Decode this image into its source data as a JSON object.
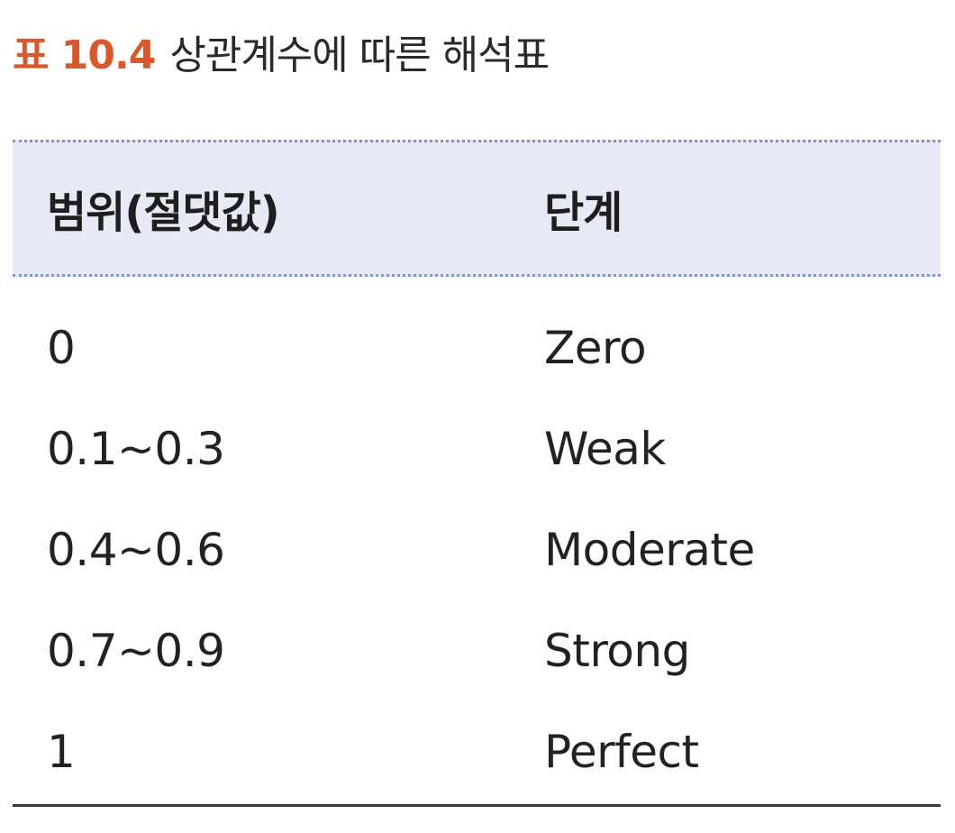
{
  "caption": {
    "label": "표 10.4",
    "title": "상관계수에 따른 해석표"
  },
  "table": {
    "headers": {
      "range": "범위(절댓값)",
      "stage": "단계"
    },
    "rows": [
      {
        "range": "0",
        "stage": "Zero"
      },
      {
        "range": "0.1~0.3",
        "stage": "Weak"
      },
      {
        "range": "0.4~0.6",
        "stage": "Moderate"
      },
      {
        "range": "0.7~0.9",
        "stage": "Strong"
      },
      {
        "range": "1",
        "stage": "Perfect"
      }
    ]
  },
  "colors": {
    "caption_label": "#d9582b",
    "header_background": "#e7e9f6",
    "header_rule": "#7f93d6"
  }
}
